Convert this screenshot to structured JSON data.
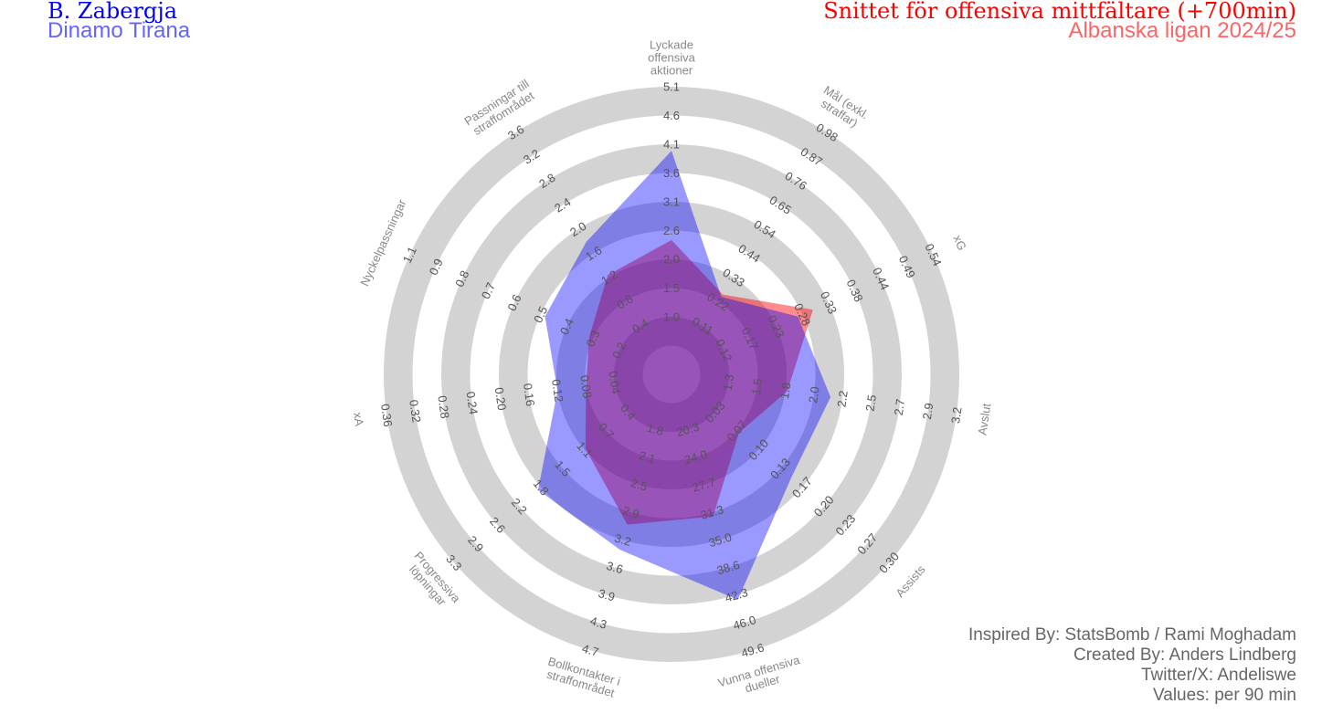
{
  "header": {
    "player": "B. Zabergja",
    "team": "Dinamo Tirana",
    "comparison_title": "Snittet för offensiva mittfältare (+700min)",
    "comparison_subtitle": "Albanska ligan 2024/25"
  },
  "credits": [
    "Inspired By: StatsBomb / Rami Moghadam",
    "Created By: Anders Lindberg",
    "Twitter/X: Andeliswe",
    "Values: per 90 min"
  ],
  "colors": {
    "player": "#0000ff",
    "average": "#ff0000",
    "rings": "#d3d3d3"
  },
  "chart_data": {
    "type": "radar",
    "title": "B. Zabergja vs Snittet för offensiva mittfältare (+700min)",
    "params": [
      {
        "label": [
          "Lyckade",
          "offensiva",
          "aktioner"
        ],
        "low": 0.49,
        "high": 5.1,
        "ticks": [
          "1.0",
          "1.5",
          "2.0",
          "2.6",
          "3.1",
          "3.6",
          "4.1",
          "4.6",
          "5.1"
        ]
      },
      {
        "label": [
          "Mål (exkl.",
          "straffar)"
        ],
        "low": 0.0,
        "high": 0.98,
        "ticks": [
          "0.11",
          "0.22",
          "0.33",
          "0.44",
          "0.54",
          "0.65",
          "0.76",
          "0.87",
          "0.98"
        ]
      },
      {
        "label": [
          "xG"
        ],
        "low": 0.07,
        "high": 0.54,
        "ticks": [
          "0.12",
          "0.17",
          "0.23",
          "0.28",
          "0.33",
          "0.38",
          "0.44",
          "0.49",
          "0.54"
        ]
      },
      {
        "label": [
          "Avslut"
        ],
        "low": 1.06,
        "high": 3.2,
        "ticks": [
          "1.3",
          "1.5",
          "1.8",
          "2.0",
          "2.2",
          "2.5",
          "2.7",
          "2.9",
          "3.2"
        ]
      },
      {
        "label": [
          "Assists"
        ],
        "low": 0.0,
        "high": 0.3,
        "ticks": [
          "0.03",
          "0.07",
          "0.10",
          "0.13",
          "0.17",
          "0.20",
          "0.23",
          "0.27",
          "0.30"
        ]
      },
      {
        "label": [
          "Vunna offensiva",
          "dueller"
        ],
        "low": 16.6,
        "high": 49.6,
        "ticks": [
          "20.3",
          "24.0",
          "27.7",
          "31.3",
          "35.0",
          "38.6",
          "42.3",
          "46.0",
          "49.6"
        ]
      },
      {
        "label": [
          "Bollkontakter i",
          "straffområdet"
        ],
        "low": 1.44,
        "high": 4.7,
        "ticks": [
          "1.8",
          "2.1",
          "2.5",
          "2.9",
          "3.2",
          "3.6",
          "3.9",
          "4.3",
          "4.7"
        ]
      },
      {
        "label": [
          "Progressiva",
          "löpningar"
        ],
        "low": 0.04,
        "high": 3.3,
        "ticks": [
          "0.4",
          "0.7",
          "1.1",
          "1.5",
          "1.8",
          "2.2",
          "2.6",
          "2.9",
          "3.3"
        ]
      },
      {
        "label": [
          "xA"
        ],
        "low": 0.0,
        "high": 0.36,
        "ticks": [
          "0.04",
          "0.08",
          "0.12",
          "0.16",
          "0.20",
          "0.24",
          "0.28",
          "0.32",
          "0.36"
        ]
      },
      {
        "label": [
          "Nyckelpassningar"
        ],
        "low": 0.09,
        "high": 1.1,
        "ticks": [
          "0.2",
          "0.3",
          "0.4",
          "0.5",
          "0.6",
          "0.7",
          "0.8",
          "0.9",
          "1.1"
        ]
      },
      {
        "label": [
          "Passningar till",
          "straffområdet"
        ],
        "low": 0.0,
        "high": 3.6,
        "ticks": [
          "0.4",
          "0.8",
          "1.2",
          "1.6",
          "2.0",
          "2.4",
          "2.8",
          "3.2",
          "3.6"
        ]
      }
    ],
    "series": [
      {
        "name": "Snittet för offensiva mittfältare (+700min)",
        "color": "#ff0000",
        "values": [
          2.37,
          0.25,
          0.3,
          1.79,
          0.07,
          31.8,
          3.05,
          1.11,
          0.08,
          0.33,
          1.24
        ]
      },
      {
        "name": "B. Zabergja",
        "color": "#0000ff",
        "values": [
          3.96,
          0.24,
          0.27,
          2.15,
          0.15,
          42.9,
          3.38,
          1.9,
          0.12,
          0.52,
          1.79
        ]
      }
    ]
  }
}
